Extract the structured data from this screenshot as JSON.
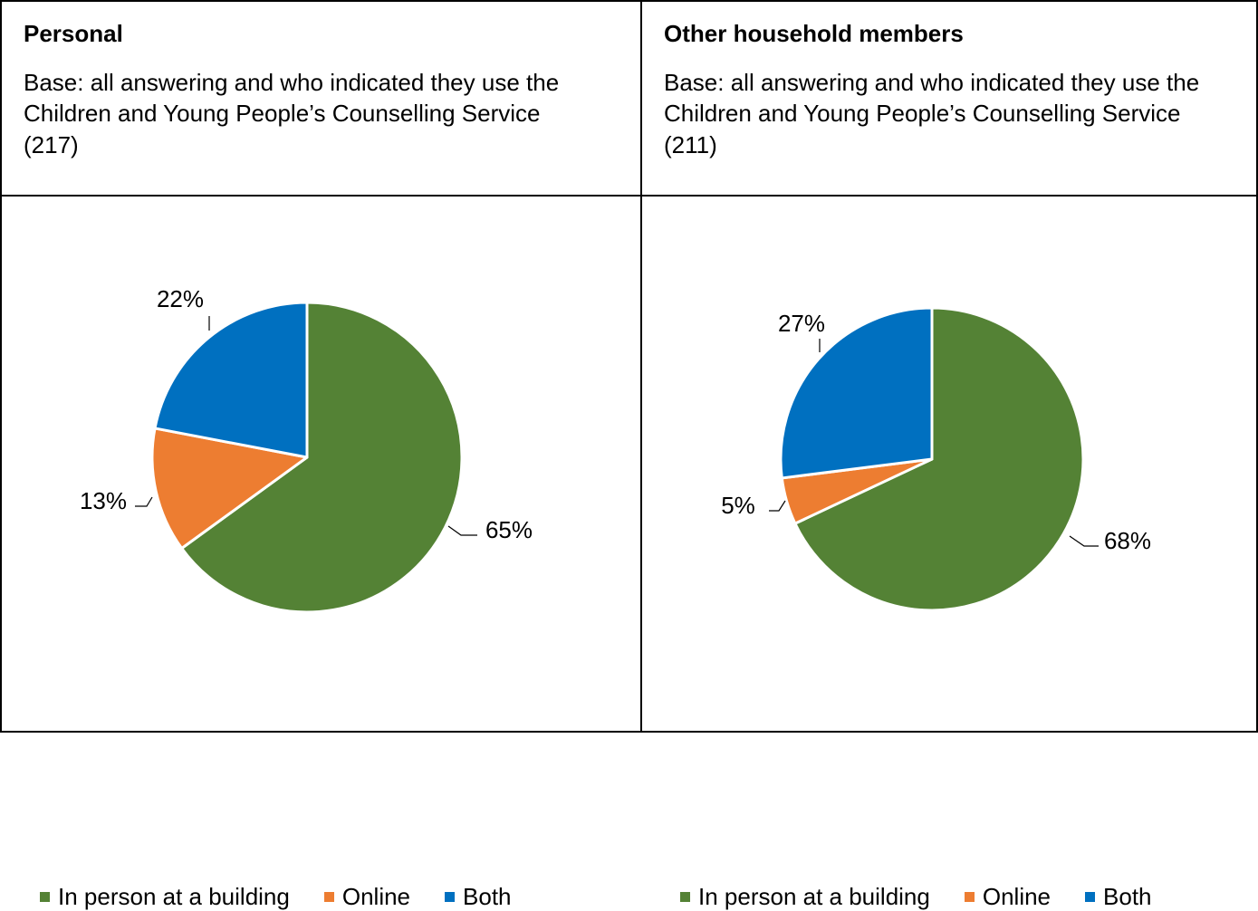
{
  "chart_data": [
    {
      "type": "pie",
      "title": "Personal",
      "subtitle": "Base: all answering and who indicated they use the Children and Young People’s Counselling Service (217)",
      "categories": [
        "In person at a building",
        "Online",
        "Both"
      ],
      "values": [
        65,
        13,
        22
      ],
      "labels": [
        "65%",
        "13%",
        "22%"
      ],
      "colors": [
        "#548235",
        "#ED7D31",
        "#0070C0"
      ],
      "legend": "bottom"
    },
    {
      "type": "pie",
      "title": "Other household members",
      "subtitle": "Base: all answering and who indicated they use the Children and Young People’s Counselling Service (211)",
      "categories": [
        "In person at a building",
        "Online",
        "Both"
      ],
      "values": [
        68,
        5,
        27
      ],
      "labels": [
        "68%",
        "5%",
        "27%"
      ],
      "colors": [
        "#548235",
        "#ED7D31",
        "#0070C0"
      ],
      "legend": "bottom"
    }
  ]
}
